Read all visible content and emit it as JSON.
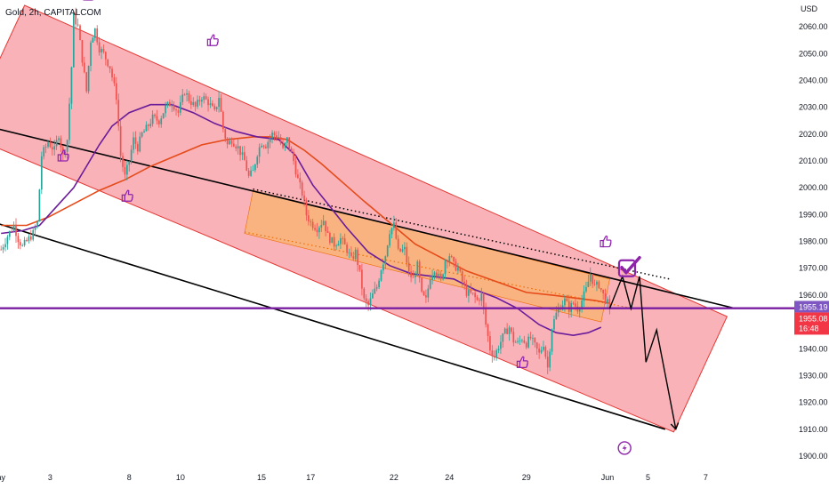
{
  "header": {
    "title": "Gold, 2h, CAPITALCOM",
    "currency": "USD"
  },
  "colors": {
    "up": "#26a69a",
    "down": "#ef5350",
    "channel_fill": "#f7a4ab",
    "channel_stroke": "#e53935",
    "inner_fill": "#f7b27a",
    "inner_stroke": "#ef6c00",
    "ma_fast": "#6a1b9a",
    "ma_slow": "#e64a19",
    "support_line": "#7b1fa2",
    "trend_line": "#000000",
    "icon": "#8e24aa",
    "price_tag_1": "#7e57c2",
    "price_tag_2": "#f23645"
  },
  "chart_data": {
    "type": "candlestick",
    "symbol": "Gold",
    "interval": "2h",
    "source": "CAPITALCOM",
    "y_axis": {
      "currency": "USD",
      "range": [
        1897,
        2070
      ],
      "ticks": [
        "2060.00",
        "2050.00",
        "2040.00",
        "2030.00",
        "2020.00",
        "2010.00",
        "2000.00",
        "1990.00",
        "1980.00",
        "1970.00",
        "1960.00",
        "1950.00",
        "1940.00",
        "1930.00",
        "1920.00",
        "1910.00",
        "1900.00"
      ]
    },
    "x_axis": {
      "ticks": [
        {
          "label": "ay",
          "idx": 0
        },
        {
          "label": "3",
          "idx": 23
        },
        {
          "label": "8",
          "idx": 60
        },
        {
          "label": "10",
          "idx": 84
        },
        {
          "label": "15",
          "idx": 122
        },
        {
          "label": "17",
          "idx": 145
        },
        {
          "label": "22",
          "idx": 184
        },
        {
          "label": "24",
          "idx": 210
        },
        {
          "label": "29",
          "idx": 246
        },
        {
          "label": "Jun",
          "idx": 284
        },
        {
          "label": "5",
          "idx": 303
        },
        {
          "label": "7",
          "idx": 330
        }
      ],
      "last_candle_idx": 285,
      "visible_slots": 372
    },
    "price_labels": [
      {
        "value": "1955.19",
        "color": "#7e57c2"
      },
      {
        "value": "1955.08",
        "sub": "16:48",
        "color": "#f23645"
      }
    ],
    "support_level": 1955.1,
    "waypoints": [
      [
        0,
        1977
      ],
      [
        3,
        1982
      ],
      [
        6,
        1986
      ],
      [
        8,
        1981
      ],
      [
        10,
        1978
      ],
      [
        12,
        1980
      ],
      [
        15,
        1983
      ],
      [
        17,
        1987
      ],
      [
        19,
        2012
      ],
      [
        22,
        2017
      ],
      [
        25,
        2014
      ],
      [
        27,
        2020
      ],
      [
        29,
        2012
      ],
      [
        31,
        2018
      ],
      [
        33,
        2045
      ],
      [
        34,
        2064
      ],
      [
        36,
        2060
      ],
      [
        38,
        2048
      ],
      [
        40,
        2036
      ],
      [
        42,
        2055
      ],
      [
        44,
        2059
      ],
      [
        46,
        2052
      ],
      [
        48,
        2050
      ],
      [
        51,
        2045
      ],
      [
        54,
        2034
      ],
      [
        56,
        2012
      ],
      [
        58,
        2004
      ],
      [
        60,
        2010
      ],
      [
        62,
        2018
      ],
      [
        64,
        2015
      ],
      [
        66,
        2020
      ],
      [
        68,
        2022
      ],
      [
        71,
        2026
      ],
      [
        74,
        2025
      ],
      [
        77,
        2030
      ],
      [
        80,
        2032
      ],
      [
        83,
        2028
      ],
      [
        86,
        2036
      ],
      [
        88,
        2033
      ],
      [
        91,
        2030
      ],
      [
        94,
        2034
      ],
      [
        97,
        2032
      ],
      [
        100,
        2028
      ],
      [
        102,
        2034
      ],
      [
        104,
        2022
      ],
      [
        106,
        2016
      ],
      [
        108,
        2018
      ],
      [
        111,
        2015
      ],
      [
        114,
        2010
      ],
      [
        116,
        2004
      ],
      [
        118,
        2006
      ],
      [
        120,
        2013
      ],
      [
        122,
        2017
      ],
      [
        124,
        2016
      ],
      [
        127,
        2020
      ],
      [
        130,
        2019
      ],
      [
        132,
        2014
      ],
      [
        134,
        2018
      ],
      [
        137,
        2010
      ],
      [
        139,
        2003
      ],
      [
        141,
        1998
      ],
      [
        143,
        1990
      ],
      [
        145,
        1987
      ],
      [
        148,
        1985
      ],
      [
        151,
        1988
      ],
      [
        153,
        1982
      ],
      [
        156,
        1979
      ],
      [
        159,
        1981
      ],
      [
        162,
        1977
      ],
      [
        164,
        1973
      ],
      [
        166,
        1976
      ],
      [
        168,
        1968
      ],
      [
        170,
        1958
      ],
      [
        172,
        1956
      ],
      [
        174,
        1960
      ],
      [
        176,
        1963
      ],
      [
        178,
        1970
      ],
      [
        180,
        1975
      ],
      [
        182,
        1984
      ],
      [
        184,
        1986
      ],
      [
        186,
        1976
      ],
      [
        189,
        1977
      ],
      [
        191,
        1968
      ],
      [
        193,
        1966
      ],
      [
        195,
        1971
      ],
      [
        197,
        1960
      ],
      [
        199,
        1958
      ],
      [
        201,
        1967
      ],
      [
        203,
        1970
      ],
      [
        206,
        1965
      ],
      [
        208,
        1973
      ],
      [
        210,
        1975
      ],
      [
        212,
        1971
      ],
      [
        214,
        1970
      ],
      [
        216,
        1965
      ],
      [
        218,
        1961
      ],
      [
        221,
        1960
      ],
      [
        223,
        1958
      ],
      [
        225,
        1960
      ],
      [
        227,
        1949
      ],
      [
        229,
        1940
      ],
      [
        231,
        1937
      ],
      [
        233,
        1941
      ],
      [
        236,
        1946
      ],
      [
        238,
        1948
      ],
      [
        240,
        1943
      ],
      [
        242,
        1942
      ],
      [
        244,
        1944
      ],
      [
        246,
        1942
      ],
      [
        248,
        1944
      ],
      [
        250,
        1941
      ],
      [
        252,
        1938
      ],
      [
        254,
        1942
      ],
      [
        256,
        1933
      ],
      [
        258,
        1948
      ],
      [
        260,
        1953
      ],
      [
        262,
        1956
      ],
      [
        264,
        1958
      ],
      [
        266,
        1955
      ],
      [
        268,
        1957
      ],
      [
        270,
        1955
      ],
      [
        272,
        1958
      ],
      [
        274,
        1962
      ],
      [
        276,
        1968
      ],
      [
        278,
        1963
      ],
      [
        280,
        1964
      ],
      [
        282,
        1960
      ],
      [
        284,
        1957
      ],
      [
        285,
        1955
      ]
    ],
    "ma_fast": [
      [
        0,
        1983
      ],
      [
        10,
        1984
      ],
      [
        18,
        1986
      ],
      [
        26,
        1993
      ],
      [
        34,
        2000
      ],
      [
        40,
        2008
      ],
      [
        46,
        2016
      ],
      [
        52,
        2023
      ],
      [
        60,
        2028
      ],
      [
        70,
        2031
      ],
      [
        80,
        2031
      ],
      [
        90,
        2028
      ],
      [
        100,
        2024
      ],
      [
        110,
        2021
      ],
      [
        120,
        2019
      ],
      [
        130,
        2018
      ],
      [
        138,
        2012
      ],
      [
        146,
        2001
      ],
      [
        154,
        1993
      ],
      [
        162,
        1985
      ],
      [
        172,
        1976
      ],
      [
        182,
        1971
      ],
      [
        192,
        1968
      ],
      [
        202,
        1967
      ],
      [
        212,
        1966
      ],
      [
        222,
        1962
      ],
      [
        232,
        1959
      ],
      [
        242,
        1955
      ],
      [
        252,
        1949
      ],
      [
        260,
        1946
      ],
      [
        268,
        1945
      ],
      [
        275,
        1946
      ],
      [
        281,
        1948
      ]
    ],
    "ma_slow": [
      [
        0,
        1986
      ],
      [
        12,
        1986
      ],
      [
        22,
        1989
      ],
      [
        34,
        1994
      ],
      [
        46,
        1999
      ],
      [
        58,
        2003
      ],
      [
        70,
        2008
      ],
      [
        82,
        2012
      ],
      [
        94,
        2016
      ],
      [
        106,
        2018
      ],
      [
        118,
        2019
      ],
      [
        126,
        2019
      ],
      [
        134,
        2018
      ],
      [
        142,
        2014
      ],
      [
        150,
        2009
      ],
      [
        160,
        2002
      ],
      [
        170,
        1995
      ],
      [
        182,
        1987
      ],
      [
        194,
        1979
      ],
      [
        206,
        1974
      ],
      [
        218,
        1969
      ],
      [
        232,
        1965
      ],
      [
        246,
        1961
      ],
      [
        258,
        1960
      ],
      [
        268,
        1959
      ],
      [
        278,
        1958
      ],
      [
        285,
        1957
      ]
    ],
    "channel": {
      "outer": [
        [
          11,
          2068
        ],
        [
          340,
          1952
        ],
        [
          315,
          1909
        ],
        [
          -17,
          2020
        ]
      ],
      "inner": [
        [
          118,
          1999
        ],
        [
          285,
          1966
        ],
        [
          281,
          1950
        ],
        [
          114,
          1983
        ]
      ],
      "upper_line": [
        [
          -7,
          2023
        ],
        [
          344,
          1955
        ]
      ],
      "lower_line": [
        [
          -7,
          1988
        ],
        [
          311,
          1910
        ]
      ],
      "dotted_top": [
        [
          118,
          1999.5
        ],
        [
          313,
          1966
        ]
      ],
      "dotted_bottom": [
        [
          114,
          1983.5
        ],
        [
          296,
          1955
        ]
      ]
    },
    "projection": [
      [
        285,
        1955
      ],
      [
        291,
        1967
      ],
      [
        295,
        1955
      ],
      [
        299,
        1967
      ],
      [
        302,
        1935
      ],
      [
        307,
        1947
      ],
      [
        316,
        1910
      ]
    ],
    "thumbs_up": [
      [
        41,
        2072
      ],
      [
        29,
        2012
      ],
      [
        59,
        1997
      ],
      [
        99,
        2055
      ],
      [
        244,
        1935
      ],
      [
        283,
        1980
      ]
    ],
    "checkmark_anchor": [
      294,
      1970
    ],
    "bolt_anchor": [
      292,
      1903
    ]
  }
}
